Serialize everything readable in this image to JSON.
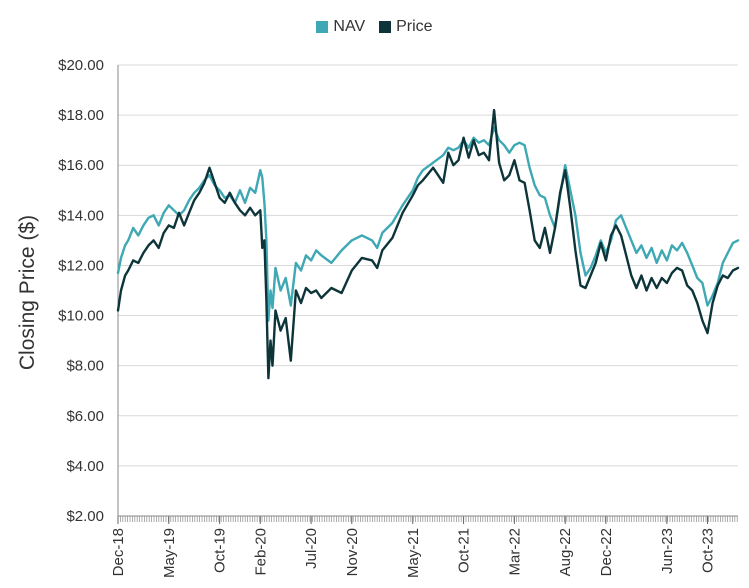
{
  "chart_data": {
    "type": "line",
    "title": "",
    "xlabel": "",
    "ylabel": "Closing Price ($)",
    "ylim": [
      2,
      20
    ],
    "y_ticks": [
      "$2.00",
      "$4.00",
      "$6.00",
      "$8.00",
      "$10.00",
      "$12.00",
      "$14.00",
      "$16.00",
      "$18.00",
      "$20.00"
    ],
    "x_range_months": [
      0,
      61
    ],
    "x_ticks": [
      {
        "label": "Dec-18",
        "m": 0
      },
      {
        "label": "May-19",
        "m": 5
      },
      {
        "label": "Oct-19",
        "m": 10
      },
      {
        "label": "Feb-20",
        "m": 14
      },
      {
        "label": "Jul-20",
        "m": 19
      },
      {
        "label": "Nov-20",
        "m": 23
      },
      {
        "label": "May-21",
        "m": 29
      },
      {
        "label": "Oct-21",
        "m": 34
      },
      {
        "label": "Mar-22",
        "m": 39
      },
      {
        "label": "Aug-22",
        "m": 44
      },
      {
        "label": "Dec-22",
        "m": 48
      },
      {
        "label": "Jun-23",
        "m": 54
      },
      {
        "label": "Oct-23",
        "m": 58
      }
    ],
    "legend": {
      "position": "top-center"
    },
    "series": [
      {
        "name": "NAV",
        "color": "#3ea8b4",
        "x": [
          0,
          0.3,
          0.7,
          1.0,
          1.5,
          2.0,
          2.5,
          3.0,
          3.5,
          4.0,
          4.5,
          5.0,
          5.5,
          6.0,
          6.5,
          7.0,
          7.5,
          8.0,
          8.5,
          9.0,
          9.5,
          10.0,
          10.5,
          11.0,
          11.5,
          12.0,
          12.5,
          13.0,
          13.5,
          14.0,
          14.2,
          14.4,
          14.6,
          14.8,
          15.0,
          15.2,
          15.5,
          16.0,
          16.5,
          17.0,
          17.5,
          18.0,
          18.5,
          19.0,
          19.5,
          20.0,
          21.0,
          22.0,
          23.0,
          24.0,
          25.0,
          25.5,
          26.0,
          27.0,
          28.0,
          29.0,
          29.5,
          30.0,
          31.0,
          32.0,
          32.5,
          33.0,
          33.5,
          34.0,
          34.5,
          35.0,
          35.5,
          36.0,
          36.5,
          37.0,
          37.5,
          38.0,
          38.5,
          39.0,
          39.5,
          40.0,
          40.5,
          41.0,
          41.5,
          42.0,
          42.5,
          43.0,
          43.5,
          44.0,
          44.5,
          45.0,
          45.5,
          46.0,
          46.5,
          47.0,
          47.5,
          48.0,
          48.5,
          49.0,
          49.5,
          50.0,
          50.5,
          51.0,
          51.5,
          52.0,
          52.5,
          53.0,
          53.5,
          54.0,
          54.5,
          55.0,
          55.5,
          56.0,
          56.5,
          57.0,
          57.5,
          58.0,
          58.5,
          59.0,
          59.5,
          60.0,
          60.5,
          61.0
        ],
        "values": [
          11.7,
          12.3,
          12.8,
          13.0,
          13.5,
          13.2,
          13.6,
          13.9,
          14.0,
          13.6,
          14.1,
          14.4,
          14.2,
          14.0,
          14.2,
          14.6,
          14.9,
          15.1,
          15.4,
          15.6,
          15.2,
          15.0,
          14.7,
          14.8,
          14.5,
          15.0,
          14.5,
          15.1,
          14.9,
          15.8,
          15.5,
          14.5,
          13.0,
          9.8,
          11.0,
          10.3,
          11.9,
          11.0,
          11.5,
          10.4,
          12.1,
          11.8,
          12.4,
          12.2,
          12.6,
          12.4,
          12.1,
          12.6,
          13.0,
          13.2,
          13.0,
          12.7,
          13.3,
          13.7,
          14.4,
          15.0,
          15.5,
          15.8,
          16.1,
          16.4,
          16.7,
          16.6,
          16.7,
          17.0,
          16.7,
          17.1,
          16.9,
          17.0,
          16.8,
          17.5,
          17.0,
          16.8,
          16.5,
          16.8,
          16.9,
          16.8,
          15.9,
          15.2,
          14.8,
          14.7,
          14.0,
          13.5,
          14.8,
          16.0,
          15.0,
          14.0,
          12.5,
          11.6,
          11.9,
          12.4,
          13.0,
          12.5,
          13.0,
          13.8,
          14.0,
          13.5,
          13.0,
          12.5,
          12.8,
          12.3,
          12.7,
          12.1,
          12.6,
          12.2,
          12.8,
          12.6,
          12.9,
          12.5,
          12.0,
          11.5,
          11.3,
          10.4,
          10.8,
          11.3,
          12.1,
          12.5,
          12.9,
          13.0
        ]
      },
      {
        "name": "Price",
        "color": "#0d3539",
        "x": [
          0,
          0.3,
          0.7,
          1.0,
          1.5,
          2.0,
          2.5,
          3.0,
          3.5,
          4.0,
          4.5,
          5.0,
          5.5,
          6.0,
          6.5,
          7.0,
          7.5,
          8.0,
          8.5,
          9.0,
          9.5,
          10.0,
          10.5,
          11.0,
          11.5,
          12.0,
          12.5,
          13.0,
          13.5,
          14.0,
          14.2,
          14.4,
          14.6,
          14.8,
          15.0,
          15.2,
          15.5,
          16.0,
          16.5,
          17.0,
          17.5,
          18.0,
          18.5,
          19.0,
          19.5,
          20.0,
          21.0,
          22.0,
          23.0,
          24.0,
          25.0,
          25.5,
          26.0,
          27.0,
          28.0,
          29.0,
          29.5,
          30.0,
          31.0,
          32.0,
          32.5,
          33.0,
          33.5,
          34.0,
          34.5,
          35.0,
          35.5,
          36.0,
          36.5,
          37.0,
          37.5,
          38.0,
          38.5,
          39.0,
          39.5,
          40.0,
          40.5,
          41.0,
          41.5,
          42.0,
          42.5,
          43.0,
          43.5,
          44.0,
          44.5,
          45.0,
          45.5,
          46.0,
          46.5,
          47.0,
          47.5,
          48.0,
          48.5,
          49.0,
          49.5,
          50.0,
          50.5,
          51.0,
          51.5,
          52.0,
          52.5,
          53.0,
          53.5,
          54.0,
          54.5,
          55.0,
          55.5,
          56.0,
          56.5,
          57.0,
          57.5,
          58.0,
          58.5,
          59.0,
          59.5,
          60.0,
          60.5,
          61.0
        ],
        "values": [
          10.2,
          11.0,
          11.6,
          11.8,
          12.2,
          12.1,
          12.5,
          12.8,
          13.0,
          12.7,
          13.3,
          13.6,
          13.5,
          14.1,
          13.6,
          14.1,
          14.6,
          14.9,
          15.3,
          15.9,
          15.3,
          14.7,
          14.5,
          14.9,
          14.5,
          14.2,
          14.0,
          14.3,
          14.0,
          14.2,
          12.7,
          13.0,
          10.6,
          7.5,
          9.0,
          8.0,
          10.2,
          9.4,
          9.9,
          8.2,
          11.0,
          10.5,
          11.1,
          10.9,
          11.0,
          10.7,
          11.1,
          10.9,
          11.8,
          12.3,
          12.2,
          11.9,
          12.6,
          13.1,
          14.1,
          14.8,
          15.2,
          15.4,
          15.9,
          15.3,
          16.5,
          16.0,
          16.2,
          17.1,
          16.3,
          17.0,
          16.4,
          16.5,
          16.2,
          18.2,
          16.1,
          15.4,
          15.6,
          16.2,
          15.4,
          15.3,
          14.2,
          13.0,
          12.7,
          13.5,
          12.5,
          13.5,
          14.9,
          15.8,
          14.3,
          12.6,
          11.2,
          11.1,
          11.6,
          12.1,
          12.9,
          12.2,
          13.2,
          13.6,
          13.2,
          12.4,
          11.6,
          11.1,
          11.6,
          11.0,
          11.5,
          11.1,
          11.5,
          11.3,
          11.7,
          11.9,
          11.8,
          11.2,
          11.0,
          10.5,
          9.8,
          9.3,
          10.5,
          11.2,
          11.6,
          11.5,
          11.8,
          11.9
        ]
      }
    ]
  }
}
